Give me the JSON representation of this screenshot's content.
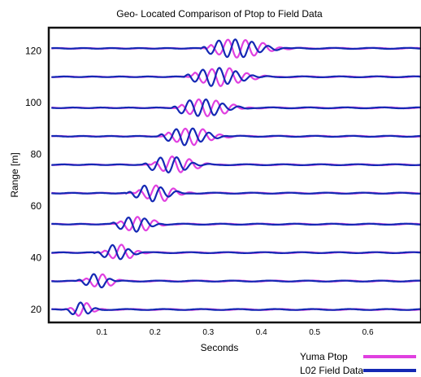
{
  "chart_data": {
    "type": "line",
    "title": "Geo- Located Comparison of Ptop to Field Data",
    "xlabel": "Seconds",
    "ylabel": "Range [m]",
    "xlim": [
      0,
      0.7
    ],
    "ylim": [
      15,
      129
    ],
    "xticks": [
      0.1,
      0.2,
      0.3,
      0.4,
      0.5,
      0.6
    ],
    "xtick_labels": [
      "0.1",
      "0.2",
      "0.3",
      "0.4",
      "0.5",
      "0.6"
    ],
    "yticks": [
      20,
      40,
      60,
      80,
      100,
      120
    ],
    "ytick_labels": [
      "20",
      "40",
      "60",
      "80",
      "100",
      "120"
    ],
    "grid": false,
    "legend_position": "bottom-right",
    "ranges": [
      20,
      31,
      42,
      53,
      65,
      76,
      87,
      98,
      110,
      121
    ],
    "series": [
      {
        "name": "Yuma Ptop",
        "color": "#e040e0",
        "arrival_times": [
          0.03,
          0.06,
          0.095,
          0.125,
          0.16,
          0.19,
          0.215,
          0.24,
          0.265,
          0.295
        ],
        "peak_amplitude_m": 3.6
      },
      {
        "name": "L02 Field Data",
        "color": "#1428b4",
        "arrival_times": [
          0.025,
          0.05,
          0.085,
          0.115,
          0.145,
          0.175,
          0.205,
          0.23,
          0.255,
          0.285
        ],
        "peak_amplitude_m": 3.6
      }
    ]
  }
}
